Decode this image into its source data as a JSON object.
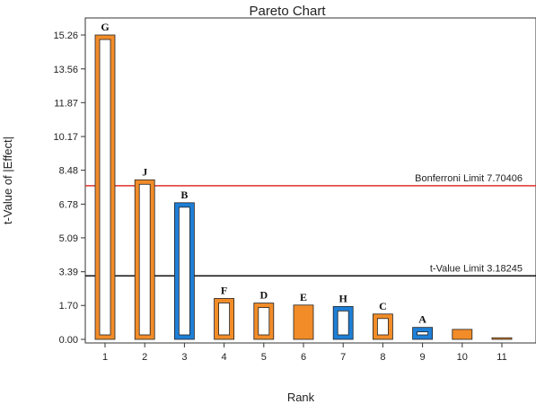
{
  "chart_data": {
    "type": "bar",
    "title": "Pareto Chart",
    "xlabel": "Rank",
    "ylabel": "t-Value of |Effect|",
    "x_ticks": [
      "1",
      "2",
      "3",
      "4",
      "5",
      "6",
      "7",
      "8",
      "9",
      "10",
      "11"
    ],
    "y_ticks": [
      "0.00",
      "1.70",
      "3.39",
      "5.09",
      "6.78",
      "8.48",
      "10.17",
      "11.87",
      "13.56",
      "15.26"
    ],
    "ylim": [
      0,
      16.4
    ],
    "bars": [
      {
        "rank": 1,
        "value": 15.26,
        "label": "G",
        "color": "#f28c28",
        "style": "outline",
        "effect": "positive"
      },
      {
        "rank": 2,
        "value": 8.0,
        "label": "J",
        "color": "#f28c28",
        "style": "outline",
        "effect": "positive"
      },
      {
        "rank": 3,
        "value": 6.85,
        "label": "B",
        "color": "#1e7fd6",
        "style": "outline",
        "effect": "negative"
      },
      {
        "rank": 4,
        "value": 2.05,
        "label": "F",
        "color": "#f28c28",
        "style": "outline",
        "effect": "positive"
      },
      {
        "rank": 5,
        "value": 1.82,
        "label": "D",
        "color": "#f28c28",
        "style": "outline",
        "effect": "positive"
      },
      {
        "rank": 6,
        "value": 1.72,
        "label": "E",
        "color": "#f28c28",
        "style": "filled",
        "effect": "positive"
      },
      {
        "rank": 7,
        "value": 1.65,
        "label": "H",
        "color": "#1e7fd6",
        "style": "outline",
        "effect": "negative"
      },
      {
        "rank": 8,
        "value": 1.27,
        "label": "C",
        "color": "#f28c28",
        "style": "outline",
        "effect": "positive"
      },
      {
        "rank": 9,
        "value": 0.6,
        "label": "A",
        "color": "#1e7fd6",
        "style": "outline",
        "effect": "negative"
      },
      {
        "rank": 10,
        "value": 0.5,
        "label": "",
        "color": "#f28c28",
        "style": "filled",
        "effect": "positive"
      },
      {
        "rank": 11,
        "value": 0.08,
        "label": "",
        "color": "#f28c28",
        "style": "filled",
        "effect": "positive"
      }
    ],
    "reference_lines": [
      {
        "name": "Bonferroni Limit",
        "label": "Bonferroni Limit 7.70406",
        "value": 7.70406,
        "color": "#e0322c"
      },
      {
        "name": "t-Value Limit",
        "label": "t-Value Limit 3.18245",
        "value": 3.18245,
        "color": "#111111"
      }
    ],
    "grid": false,
    "legend": "none"
  }
}
